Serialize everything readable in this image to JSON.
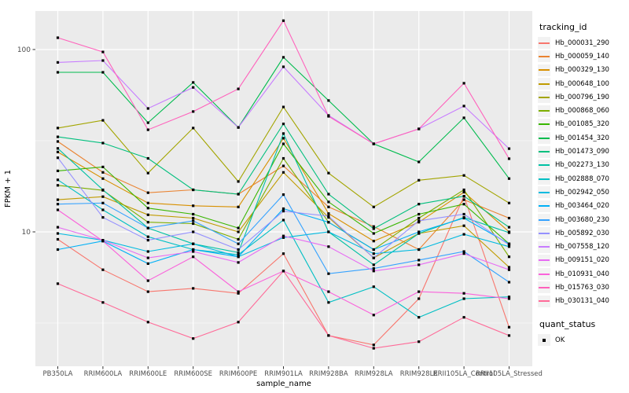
{
  "figure": {
    "background": "#FFFFFF",
    "panel_background": "#EBEBEB",
    "grid_color": "#FFFFFF",
    "tick_mark_color": "#333333",
    "tick_label_color": "#4D4D4D",
    "axis_title_color": "#000000",
    "point_color": "#000000"
  },
  "x_axis": {
    "title": "sample_name"
  },
  "y_axis": {
    "title": "FPKM + 1",
    "scale": "log10",
    "major_ticks": [
      100,
      10
    ],
    "major_tick_labels": [
      "100",
      "10"
    ],
    "minor_ticks": [
      31.62,
      3.162
    ],
    "range": [
      1.9,
      162
    ]
  },
  "legend": {
    "tracking_title": "tracking_id",
    "quant_title": "quant_status",
    "quant_items": [
      {
        "label": "OK",
        "marker": "black-square"
      }
    ]
  },
  "chart_data": {
    "type": "line",
    "title": "",
    "xlabel": "sample_name",
    "ylabel": "FPKM + 1",
    "y_scale": "log10",
    "ylim": [
      1.9,
      162
    ],
    "grid": true,
    "legend_position": "right",
    "point_marker": "filled-black-square (quant_status = OK)",
    "categories": [
      "PB350LA",
      "RRIM600LA",
      "RRIM600LE",
      "RRIM600SE",
      "RRIM600PE",
      "RRIM901LA",
      "RRIM928BA",
      "RRIM928LA",
      "RRIM928LE",
      "RRII105LA_Control",
      "RRII105LA_Stressed"
    ],
    "series": [
      {
        "name": "Hb_000031_290",
        "color": "#F8766D",
        "values": [
          9.1,
          6.2,
          4.7,
          4.9,
          4.6,
          7.6,
          2.7,
          2.4,
          4.3,
          15.7,
          3.0
        ]
      },
      {
        "name": "Hb_000059_140",
        "color": "#EA8331",
        "values": [
          31.3,
          21.2,
          16.4,
          17.0,
          16.1,
          23.0,
          13.7,
          10.7,
          8.0,
          15.0,
          11.9
        ]
      },
      {
        "name": "Hb_000329_130",
        "color": "#D89000",
        "values": [
          27.4,
          19.6,
          14.4,
          13.9,
          13.7,
          32.6,
          12.6,
          8.9,
          11.3,
          16.5,
          10.0
        ]
      },
      {
        "name": "Hb_000648_100",
        "color": "#C09B00",
        "values": [
          15.0,
          15.6,
          12.4,
          11.9,
          10.0,
          21.2,
          12.0,
          7.2,
          9.8,
          10.8,
          6.4
        ]
      },
      {
        "name": "Hb_000796_190",
        "color": "#A3A500",
        "values": [
          37.1,
          40.9,
          21.0,
          37.1,
          18.9,
          48.4,
          21.0,
          13.7,
          19.2,
          20.4,
          14.4
        ]
      },
      {
        "name": "Hb_000868_060",
        "color": "#7CAE00",
        "values": [
          18.0,
          16.9,
          11.3,
          11.1,
          9.1,
          25.3,
          11.3,
          8.0,
          11.9,
          17.0,
          7.3
        ]
      },
      {
        "name": "Hb_001085_320",
        "color": "#39B600",
        "values": [
          21.6,
          22.7,
          13.5,
          12.5,
          10.5,
          30.4,
          14.6,
          9.8,
          12.5,
          14.2,
          8.6
        ]
      },
      {
        "name": "Hb_001454_320",
        "color": "#00BB4E",
        "values": [
          75.0,
          75.0,
          39.7,
          66.0,
          37.4,
          90.6,
          52.5,
          30.4,
          24.2,
          42.2,
          19.6
        ]
      },
      {
        "name": "Hb_001473_090",
        "color": "#00BF7D",
        "values": [
          33.2,
          30.7,
          25.3,
          17.0,
          16.1,
          39.1,
          16.1,
          10.4,
          14.2,
          15.7,
          10.6
        ]
      },
      {
        "name": "Hb_002273_130",
        "color": "#00C1A3",
        "values": [
          28.7,
          17.0,
          10.5,
          8.6,
          7.7,
          34.6,
          10.0,
          6.6,
          9.8,
          12.0,
          9.9
        ]
      },
      {
        "name": "Hb_002888_070",
        "color": "#00BFC4",
        "values": [
          19.3,
          13.2,
          9.4,
          8.0,
          7.5,
          11.6,
          4.1,
          5.0,
          3.4,
          4.3,
          4.4
        ]
      },
      {
        "name": "Hb_002942_050",
        "color": "#00BAE0",
        "values": [
          9.8,
          9.0,
          7.8,
          8.6,
          7.3,
          9.3,
          10.0,
          7.6,
          8.0,
          9.7,
          8.3
        ]
      },
      {
        "name": "Hb_003464_020",
        "color": "#00B0F6",
        "values": [
          8.0,
          8.9,
          6.7,
          8.0,
          7.3,
          13.4,
          11.3,
          8.0,
          10.0,
          11.9,
          8.6
        ]
      },
      {
        "name": "Hb_003680_230",
        "color": "#35A2FF",
        "values": [
          14.2,
          14.4,
          10.5,
          11.5,
          8.6,
          16.0,
          5.9,
          6.3,
          7.0,
          7.8,
          5.3
        ]
      },
      {
        "name": "Hb_005892_030",
        "color": "#9590FF",
        "values": [
          25.5,
          12.0,
          9.0,
          10.0,
          8.0,
          13.0,
          12.2,
          7.2,
          11.5,
          12.5,
          8.5
        ]
      },
      {
        "name": "Hb_007558_120",
        "color": "#C77CFF",
        "values": [
          85.0,
          87.0,
          47.5,
          62.0,
          37.4,
          80.4,
          43.5,
          30.4,
          36.7,
          49.0,
          28.6
        ]
      },
      {
        "name": "Hb_009151_020",
        "color": "#E76BF3",
        "values": [
          10.6,
          9.0,
          7.2,
          7.8,
          6.8,
          9.5,
          8.3,
          6.1,
          6.6,
          7.6,
          6.2
        ]
      },
      {
        "name": "Hb_010931_040",
        "color": "#FA62DB",
        "values": [
          13.2,
          8.9,
          5.4,
          7.3,
          4.7,
          6.1,
          4.7,
          3.5,
          4.7,
          4.6,
          4.3
        ]
      },
      {
        "name": "Hb_015763_030",
        "color": "#FF62BC",
        "values": [
          116.0,
          97.0,
          36.3,
          45.7,
          60.8,
          144.0,
          43.0,
          30.4,
          36.7,
          65.3,
          25.2
        ]
      },
      {
        "name": "Hb_030131_040",
        "color": "#FF6A98",
        "values": [
          5.2,
          4.1,
          3.2,
          2.6,
          3.2,
          6.1,
          2.7,
          2.3,
          2.5,
          3.4,
          2.7
        ]
      }
    ]
  }
}
